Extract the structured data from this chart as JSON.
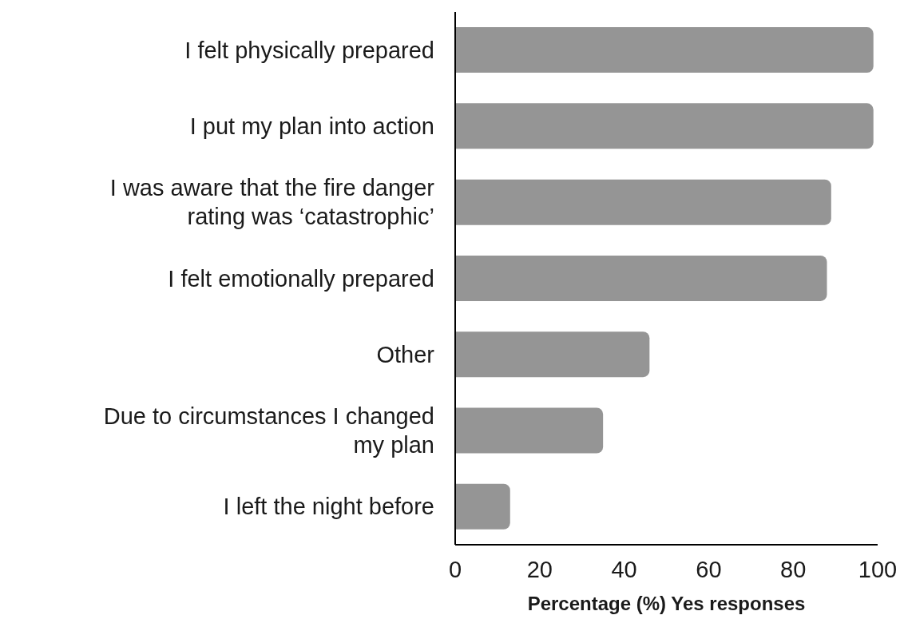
{
  "chart_data": {
    "type": "bar",
    "orientation": "horizontal",
    "categories": [
      "I felt physically prepared",
      "I put my plan into action",
      "I was aware that the fire danger rating was ‘catastrophic’",
      "I felt emotionally prepared",
      "Other",
      "Due to circumstances I changed my plan",
      "I left the night before"
    ],
    "values": [
      99,
      99,
      89,
      88,
      46,
      35,
      13
    ],
    "color": "#959595",
    "xlabel": "Percentage (%) Yes responses",
    "xlim": [
      0,
      100
    ],
    "xticks": [
      0,
      20,
      40,
      60,
      80,
      100
    ],
    "grid": false,
    "legend": false
  }
}
